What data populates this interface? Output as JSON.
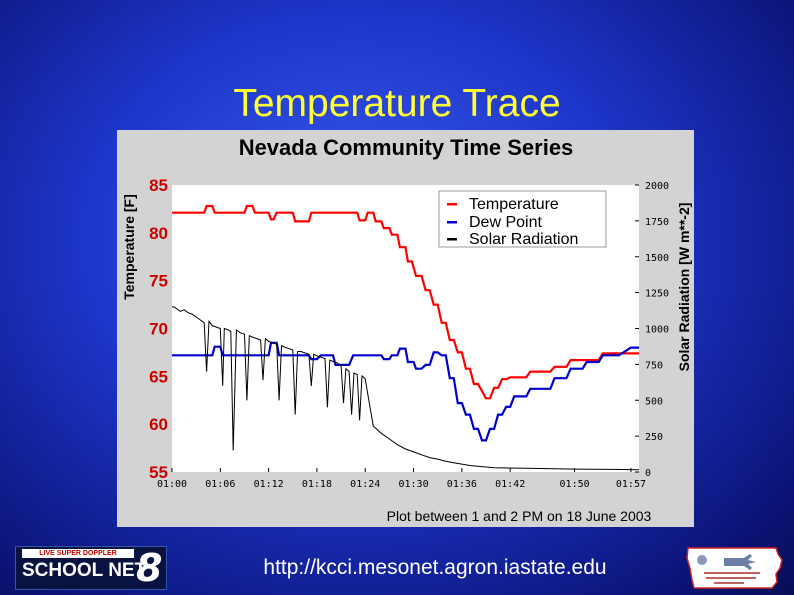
{
  "slide": {
    "title": "Temperature Trace",
    "url": "http://kcci.mesonet.agron.iastate.edu",
    "logo_left": {
      "top_text": "LIVE SUPER DOPPLER",
      "main_text": "SCHOOL NET",
      "number": "8"
    },
    "logo_right": {
      "name": "iowa-mesonet-logo"
    }
  },
  "colors": {
    "temperature": "#ff0000",
    "dew_point": "#0000cc",
    "solar": "#000000",
    "title": "#ffff33"
  },
  "chart_data": {
    "type": "line",
    "title": "Nevada Community Time Series",
    "caption": "Plot between 1 and 2 PM on 18 June 2003",
    "ylabel_left": "Temperature [F]",
    "ylabel_right": "Solar Radiation [W m**-2]",
    "ylim_left": [
      55,
      85
    ],
    "ylim_right": [
      0,
      2000
    ],
    "xlim": [
      0,
      58
    ],
    "x_tick_labels": [
      "01:00",
      "01:06",
      "01:12",
      "01:18",
      "01:24",
      "01:30",
      "01:36",
      "01:42",
      "01:50",
      "01:57"
    ],
    "x_tick_values": [
      0,
      6,
      12,
      18,
      24,
      30,
      36,
      42,
      50,
      57
    ],
    "y_left_ticks": [
      55,
      60,
      65,
      70,
      75,
      80,
      85
    ],
    "y_right_ticks": [
      0,
      250,
      500,
      750,
      1000,
      1250,
      1500,
      1750,
      2000
    ],
    "grid": false,
    "legend": "top-right",
    "series": [
      {
        "name": "Temperature",
        "x": [
          0,
          4,
          4.3,
          5,
          5.3,
          6,
          6.3,
          9,
          9.3,
          10,
          10.3,
          12,
          12.3,
          12.6,
          13,
          13.3,
          14,
          14.3,
          15,
          15.3,
          17,
          17.3,
          18,
          18.3,
          23,
          23.3,
          24,
          24.3,
          24.6,
          25,
          25.3,
          26,
          26.3,
          27,
          27.3,
          28,
          28.3,
          29,
          29.3,
          29.8,
          30.3,
          31,
          31.5,
          32,
          32.5,
          33,
          33.5,
          34,
          34.5,
          35,
          35.5,
          36,
          36.5,
          37,
          37.5,
          38,
          39,
          39.5,
          40,
          40.5,
          41,
          41.5,
          42,
          44,
          44.5,
          45,
          45.5,
          47,
          47.5,
          49,
          49.5,
          51,
          51.5,
          53,
          53.5,
          55,
          55.5,
          58
        ],
        "y": [
          82.1,
          82.1,
          82.8,
          82.8,
          82.1,
          82.1,
          82.1,
          82.1,
          82.8,
          82.8,
          82.1,
          82.1,
          81.4,
          81.4,
          82.1,
          82.1,
          82.1,
          82.1,
          82.1,
          81.2,
          81.2,
          82.1,
          82.1,
          82.1,
          82.1,
          81.3,
          81.3,
          82.1,
          82.1,
          82.1,
          81.2,
          81.2,
          80.5,
          80.5,
          79.8,
          79.8,
          78.5,
          78.5,
          77.0,
          77.0,
          75.5,
          75.5,
          74,
          74,
          72.5,
          72.5,
          70.6,
          70.6,
          68.8,
          68.8,
          67.5,
          67.5,
          65.8,
          65.8,
          64.2,
          64.2,
          62.7,
          62.7,
          63.8,
          63.8,
          64.7,
          64.7,
          64.9,
          64.9,
          65.5,
          65.5,
          65.5,
          65.5,
          66.0,
          66.0,
          66.7,
          66.7,
          66.7,
          66.7,
          67.4,
          67.4,
          67.4,
          67.4
        ]
      },
      {
        "name": "Dew Point",
        "x": [
          0,
          5,
          5.3,
          6,
          6.3,
          9,
          9.3,
          10,
          10.3,
          12,
          12.3,
          13,
          13.3,
          14,
          14.3,
          15,
          15.3,
          17,
          17.3,
          18,
          18.5,
          20,
          20.3,
          22,
          22.5,
          23,
          23.5,
          24,
          24.5,
          26,
          26.3,
          27,
          27.3,
          28,
          28.3,
          29,
          29.3,
          30,
          30.3,
          31,
          31.5,
          32,
          32.5,
          33,
          33.5,
          34,
          34.5,
          35,
          35.5,
          36,
          36.5,
          37,
          37.5,
          38,
          38.5,
          39,
          39.5,
          40,
          40.5,
          41,
          41.5,
          42,
          42.5,
          44,
          44.5,
          45,
          45.5,
          47,
          47.5,
          49,
          49.5,
          51,
          51.5,
          53,
          53.5,
          55,
          55.5,
          57,
          57.5,
          58
        ],
        "y": [
          67.2,
          67.2,
          68.1,
          68.1,
          67.2,
          67.2,
          67.2,
          67.2,
          67.2,
          67.2,
          68.5,
          68.5,
          67.2,
          67.2,
          67.2,
          67.2,
          67.2,
          67.2,
          66.8,
          66.8,
          67.2,
          67.2,
          66.2,
          66.2,
          67.2,
          67.2,
          67.2,
          67.2,
          67.2,
          67.2,
          66.8,
          66.8,
          67.2,
          67.2,
          67.9,
          67.9,
          66.5,
          66.5,
          65.8,
          65.8,
          66.2,
          66.2,
          67.5,
          67.5,
          67.2,
          67.2,
          64.8,
          64.8,
          62.2,
          62.2,
          61.0,
          61.0,
          59.5,
          59.5,
          58.3,
          58.3,
          59.5,
          59.5,
          61.0,
          61.0,
          61.8,
          61.8,
          62.9,
          62.9,
          63.7,
          63.7,
          63.7,
          63.7,
          64.8,
          64.8,
          65.8,
          65.8,
          66.5,
          66.5,
          67.2,
          67.2,
          67.2,
          68.0,
          68.0,
          68.0
        ]
      },
      {
        "name": "Solar Radiation",
        "x": [
          0,
          0.3,
          1,
          1.5,
          2,
          2.5,
          3,
          3.5,
          4,
          4.3,
          4.6,
          5,
          5.5,
          6,
          6.3,
          6.5,
          7,
          7.3,
          7.6,
          8,
          8.5,
          9,
          9.3,
          9.6,
          10,
          10.5,
          11,
          11.3,
          11.6,
          12,
          12.5,
          13,
          13.3,
          13.6,
          14,
          14.5,
          15,
          15.3,
          15.6,
          16,
          16.5,
          17,
          17.3,
          17.6,
          18,
          18.5,
          19,
          19.3,
          19.6,
          20,
          20.5,
          21,
          21.3,
          21.6,
          22,
          22.3,
          22.6,
          23,
          23.3,
          23.6,
          24,
          24.5,
          25,
          26,
          27,
          28,
          29,
          30,
          31,
          32,
          33,
          34,
          35,
          36,
          37,
          40,
          45,
          50,
          55,
          58
        ],
        "y": [
          1150,
          1150,
          1120,
          1130,
          1110,
          1100,
          1080,
          1060,
          1040,
          700,
          1050,
          1020,
          1010,
          1000,
          600,
          1000,
          990,
          980,
          150,
          990,
          970,
          960,
          500,
          950,
          940,
          930,
          920,
          640,
          930,
          910,
          900,
          890,
          500,
          880,
          870,
          860,
          850,
          400,
          840,
          840,
          830,
          820,
          600,
          820,
          810,
          800,
          790,
          450,
          780,
          770,
          760,
          740,
          480,
          720,
          700,
          400,
          690,
          680,
          360,
          670,
          650,
          480,
          320,
          270,
          230,
          190,
          160,
          140,
          120,
          100,
          90,
          75,
          65,
          55,
          45,
          30,
          25,
          20,
          18,
          15
        ]
      }
    ]
  }
}
